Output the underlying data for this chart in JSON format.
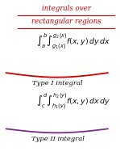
{
  "title_line1": "integrals over",
  "title_line2": "rectangular regions",
  "bg_color": "#ffffff",
  "title_color": "#cc0000",
  "type1_label": "Type I integral",
  "type2_label": "Type II integral",
  "type1_color": "#cc0000",
  "type2_color": "#7b2d8b",
  "text_color": "#111111"
}
